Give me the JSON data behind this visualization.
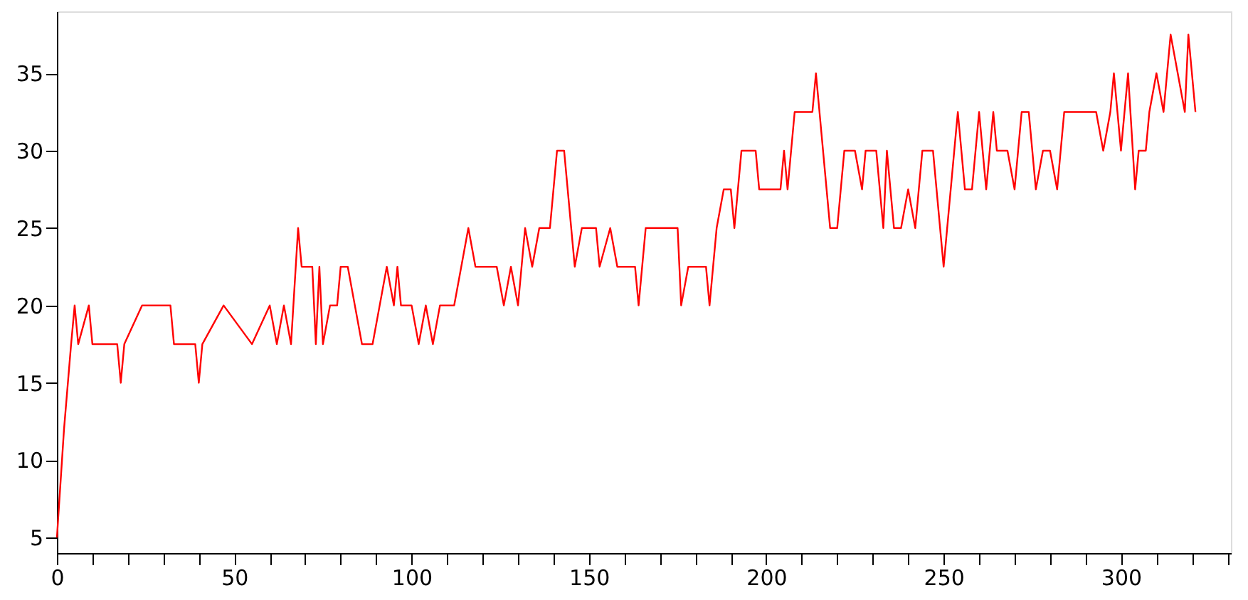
{
  "chart_data": {
    "type": "line",
    "grid": false,
    "marker": "none",
    "line_style": "solid",
    "xlim": [
      0,
      331
    ],
    "ylim": [
      4,
      39
    ],
    "xticks": [
      0,
      {
        "value": 10,
        "label": null
      },
      {
        "value": 20,
        "label": null
      },
      {
        "value": 30,
        "label": null
      },
      {
        "value": 40,
        "label": null
      },
      50,
      {
        "value": 60,
        "label": null
      },
      {
        "value": 70,
        "label": null
      },
      {
        "value": 80,
        "label": null
      },
      {
        "value": 90,
        "label": null
      },
      100,
      {
        "value": 110,
        "label": null
      },
      {
        "value": 120,
        "label": null
      },
      {
        "value": 130,
        "label": null
      },
      {
        "value": 140,
        "label": null
      },
      150,
      {
        "value": 160,
        "label": null
      },
      {
        "value": 170,
        "label": null
      },
      {
        "value": 180,
        "label": null
      },
      {
        "value": 190,
        "label": null
      },
      200,
      {
        "value": 210,
        "label": null
      },
      {
        "value": 220,
        "label": null
      },
      {
        "value": 230,
        "label": null
      },
      {
        "value": 240,
        "label": null
      },
      250,
      {
        "value": 260,
        "label": null
      },
      {
        "value": 270,
        "label": null
      },
      {
        "value": 280,
        "label": null
      },
      {
        "value": 290,
        "label": null
      },
      300,
      {
        "value": 310,
        "label": null
      },
      {
        "value": 320,
        "label": null
      },
      {
        "value": 330,
        "label": null
      }
    ],
    "yticks": [
      5,
      10,
      15,
      20,
      25,
      30,
      35
    ],
    "series": [
      {
        "color": "#ff0000",
        "x": [
          0,
          2,
          4,
          5,
          6,
          9,
          10,
          17,
          18,
          19,
          24,
          32,
          33,
          39,
          40,
          41,
          47,
          55,
          60,
          62,
          64,
          66,
          68,
          69,
          72,
          73,
          74,
          75,
          77,
          79,
          80,
          82,
          84,
          86,
          89,
          91,
          93,
          95,
          96,
          97,
          100,
          102,
          104,
          106,
          108,
          112,
          114,
          116,
          118,
          124,
          126,
          128,
          130,
          132,
          134,
          136,
          139,
          140,
          141,
          143,
          145,
          146,
          148,
          152,
          153,
          156,
          158,
          163,
          164,
          166,
          175,
          176,
          178,
          183,
          184,
          186,
          188,
          190,
          191,
          193,
          197,
          198,
          204,
          205,
          206,
          208,
          213,
          214,
          215,
          217,
          218,
          220,
          222,
          225,
          227,
          228,
          231,
          233,
          234,
          236,
          238,
          240,
          242,
          244,
          247,
          250,
          253,
          254,
          256,
          258,
          260,
          262,
          264,
          265,
          268,
          270,
          272,
          274,
          276,
          278,
          280,
          282,
          284,
          293,
          295,
          297,
          298,
          300,
          302,
          304,
          305,
          307,
          308,
          310,
          312,
          314,
          316,
          318,
          319,
          321
        ],
        "values": [
          5,
          12,
          17.5,
          20,
          17.5,
          20,
          17.5,
          17.5,
          15,
          17.5,
          20,
          20,
          17.5,
          17.5,
          15,
          17.5,
          20,
          17.5,
          20,
          17.5,
          20,
          17.5,
          25,
          22.5,
          22.5,
          17.5,
          22.5,
          17.5,
          20,
          20,
          22.5,
          22.5,
          20,
          17.5,
          17.5,
          20,
          22.5,
          20,
          22.5,
          20,
          20,
          17.5,
          20,
          17.5,
          20,
          20,
          22.5,
          25,
          22.5,
          22.5,
          20,
          22.5,
          20,
          25,
          22.5,
          25,
          25,
          27.5,
          30,
          30,
          25,
          22.5,
          25,
          25,
          22.5,
          25,
          22.5,
          22.5,
          20,
          25,
          25,
          20,
          22.5,
          22.5,
          20,
          25,
          27.5,
          27.5,
          25,
          30,
          30,
          27.5,
          27.5,
          30,
          27.5,
          32.5,
          32.5,
          35,
          32.5,
          27.5,
          25,
          25,
          30,
          30,
          27.5,
          30,
          30,
          25,
          30,
          25,
          25,
          27.5,
          25,
          30,
          30,
          22.5,
          30,
          32.5,
          27.5,
          27.5,
          32.5,
          27.5,
          32.5,
          30,
          30,
          27.5,
          32.5,
          32.5,
          27.5,
          30,
          30,
          27.5,
          32.5,
          32.5,
          30,
          32.5,
          35,
          30,
          35,
          27.5,
          30,
          30,
          32.5,
          35,
          32.5,
          37.5,
          35,
          32.5,
          37.5,
          32.5
        ]
      }
    ]
  }
}
